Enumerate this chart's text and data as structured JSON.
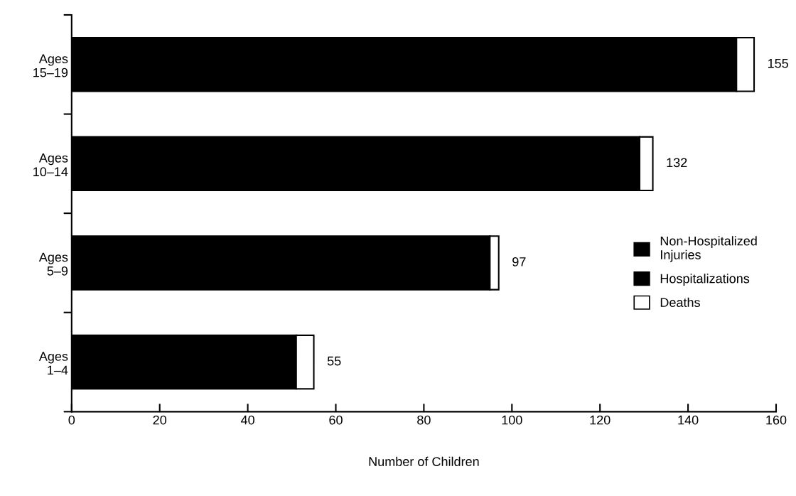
{
  "chart_data": {
    "type": "bar",
    "orientation": "horizontal",
    "stacked": true,
    "xlabel": "Number of Children",
    "categories": [
      "Ages\n15–19",
      "Ages\n10–14",
      "Ages\n5–9",
      "Ages\n1–4"
    ],
    "series": [
      {
        "name": "Non-Hospitalized\nInjuries",
        "color": "#000000",
        "values": [
          151,
          129,
          95,
          51
        ]
      },
      {
        "name": "Hospitalizations",
        "color": "#000000",
        "values": [
          null,
          null,
          null,
          null
        ]
      },
      {
        "name": "Deaths",
        "color": "#ffffff",
        "values": [
          4,
          3,
          2,
          4
        ]
      }
    ],
    "totals": [
      "155",
      "132",
      "97",
      "55"
    ],
    "xlim": [
      0,
      160
    ],
    "xticks": [
      0,
      20,
      40,
      60,
      80,
      100,
      120,
      140,
      160
    ],
    "grid": false,
    "legend": "right"
  }
}
